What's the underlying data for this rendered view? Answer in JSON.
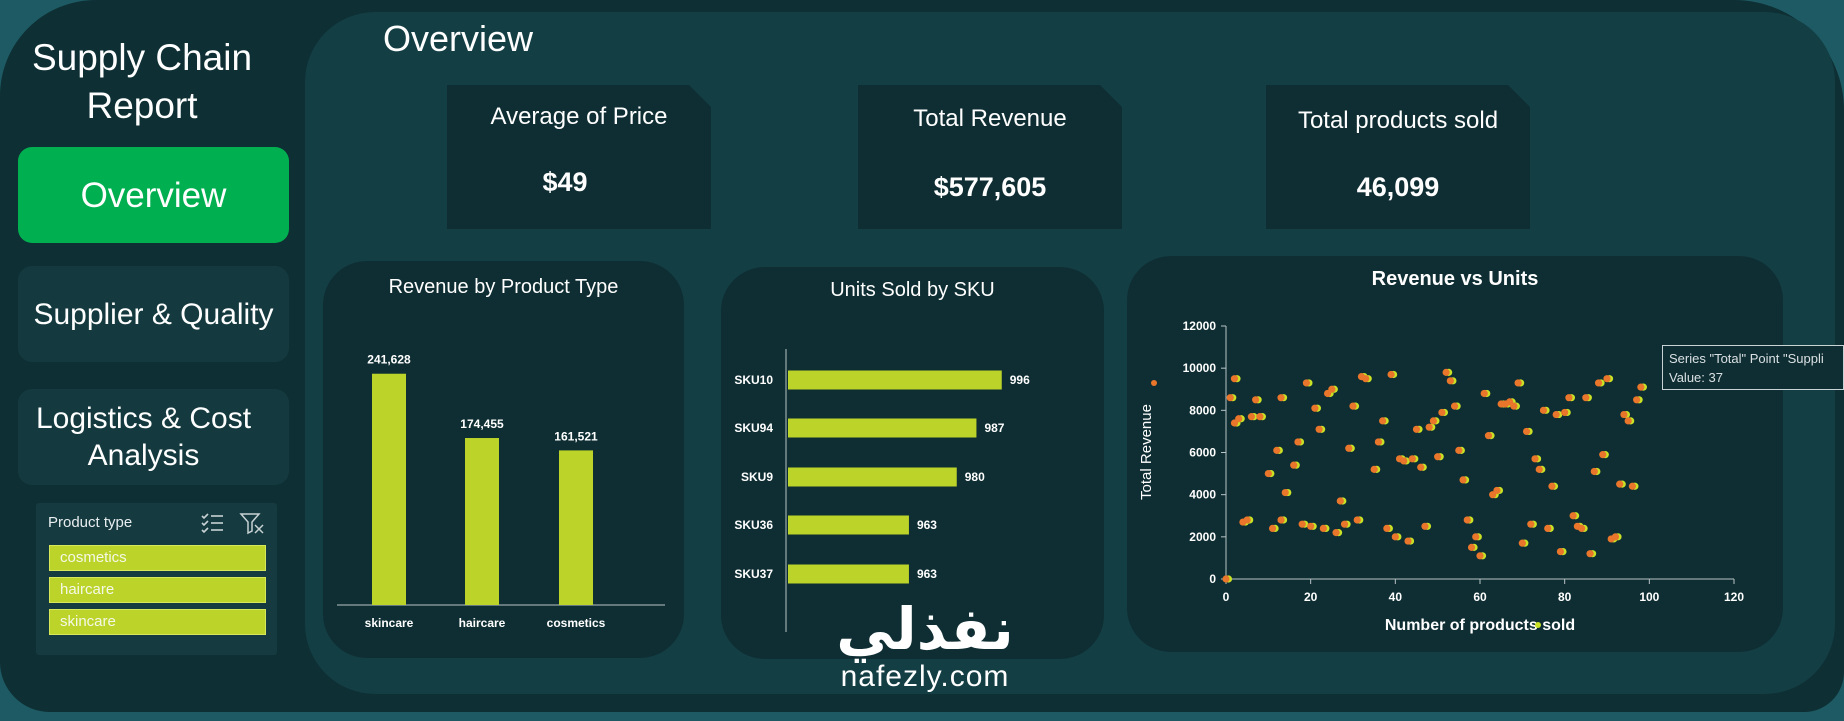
{
  "sidebar": {
    "title": "Supply  Chain\nReport",
    "nav": [
      {
        "label": "Overview"
      },
      {
        "label": "Supplier & Quality"
      },
      {
        "label": "Logistics & Cost\nAnalysis"
      }
    ],
    "slicer": {
      "header": "Product type",
      "items": [
        {
          "label": "cosmetics"
        },
        {
          "label": "haircare"
        },
        {
          "label": "skincare"
        }
      ]
    }
  },
  "main": {
    "title": "Overview",
    "kpis": [
      {
        "label": "Average of Price",
        "value": "$49"
      },
      {
        "label": "Total Revenue",
        "value": "$577,605"
      },
      {
        "label": "Total products sold",
        "value": "46,099"
      }
    ]
  },
  "charts": {
    "revenue_by_type": {
      "title": "Revenue by Product Type",
      "categories": [
        "skincare",
        "haircare",
        "cosmetics"
      ],
      "labels": [
        "241,628",
        "174,455",
        "161,521"
      ]
    },
    "units_by_sku": {
      "title": "Units Sold by SKU",
      "categories": [
        "SKU10",
        "SKU94",
        "SKU9",
        "SKU36",
        "SKU37"
      ],
      "labels": [
        "996",
        "987",
        "980",
        "963",
        "963"
      ]
    },
    "revenue_vs_units": {
      "title": "Revenue vs Units",
      "xlabel": "Number of products sold",
      "ylabel": "Total Revenue",
      "x_ticks": [
        "0",
        "20",
        "40",
        "60",
        "80",
        "100",
        "120"
      ],
      "y_ticks": [
        "0",
        "2000",
        "4000",
        "6000",
        "8000",
        "10000",
        "12000"
      ]
    }
  },
  "tooltip": {
    "line1": "Series \"Total\" Point \"Suppli",
    "line2": "Value:  37"
  },
  "watermark": {
    "arabic": "نفذلي",
    "latin": "nafezly.com"
  },
  "colors": {
    "accent_green": "#00b050",
    "bar_lime": "#bcd42a",
    "point_orange": "#e9762b",
    "point_yellow": "#c9e226",
    "panel_dark": "#0f2e33",
    "background": "#0e2f34"
  },
  "chart_data": [
    {
      "type": "bar",
      "title": "Revenue by Product Type",
      "categories": [
        "skincare",
        "haircare",
        "cosmetics"
      ],
      "values": [
        241628,
        174455,
        161521
      ],
      "ylim": [
        0,
        280000
      ],
      "grid": false,
      "legend": "none"
    },
    {
      "type": "bar",
      "orientation": "horizontal",
      "title": "Units Sold by SKU",
      "categories": [
        "SKU10",
        "SKU94",
        "SKU9",
        "SKU36",
        "SKU37"
      ],
      "values": [
        996,
        987,
        980,
        963,
        963
      ],
      "xlim": [
        920,
        1000
      ],
      "grid": false,
      "legend": "none"
    },
    {
      "type": "scatter",
      "title": "Revenue vs Units",
      "xlabel": "Number of products sold",
      "ylabel": "Total Revenue",
      "xlim": [
        0,
        120
      ],
      "ylim": [
        0,
        12000
      ],
      "grid": false,
      "legend": "none",
      "points": [
        [
          0,
          0
        ],
        [
          1,
          8600
        ],
        [
          2,
          7400
        ],
        [
          2,
          9500
        ],
        [
          3,
          7600
        ],
        [
          4,
          2700
        ],
        [
          5,
          2800
        ],
        [
          6,
          7700
        ],
        [
          7,
          8500
        ],
        [
          8,
          7700
        ],
        [
          10,
          5000
        ],
        [
          11,
          2400
        ],
        [
          12,
          6100
        ],
        [
          13,
          2800
        ],
        [
          13,
          8600
        ],
        [
          14,
          4100
        ],
        [
          16,
          5400
        ],
        [
          17,
          6500
        ],
        [
          18,
          2600
        ],
        [
          19,
          9300
        ],
        [
          20,
          2500
        ],
        [
          21,
          8100
        ],
        [
          22,
          7100
        ],
        [
          23,
          2400
        ],
        [
          24,
          8800
        ],
        [
          25,
          9000
        ],
        [
          26,
          2200
        ],
        [
          27,
          3700
        ],
        [
          28,
          2600
        ],
        [
          29,
          6200
        ],
        [
          30,
          8200
        ],
        [
          31,
          2800
        ],
        [
          32,
          9600
        ],
        [
          33,
          9500
        ],
        [
          35,
          5200
        ],
        [
          36,
          6500
        ],
        [
          37,
          7500
        ],
        [
          38,
          2400
        ],
        [
          39,
          9700
        ],
        [
          40,
          2000
        ],
        [
          41,
          5700
        ],
        [
          42,
          5600
        ],
        [
          43,
          1800
        ],
        [
          44,
          5700
        ],
        [
          45,
          7100
        ],
        [
          46,
          5300
        ],
        [
          47,
          2500
        ],
        [
          48,
          7200
        ],
        [
          49,
          7500
        ],
        [
          50,
          5800
        ],
        [
          51,
          7900
        ],
        [
          52,
          9800
        ],
        [
          53,
          9400
        ],
        [
          54,
          8200
        ],
        [
          55,
          6100
        ],
        [
          56,
          4700
        ],
        [
          57,
          2800
        ],
        [
          58,
          1500
        ],
        [
          59,
          2000
        ],
        [
          60,
          1100
        ],
        [
          61,
          8800
        ],
        [
          62,
          6800
        ],
        [
          63,
          4000
        ],
        [
          64,
          4200
        ],
        [
          65,
          8300
        ],
        [
          66,
          8300
        ],
        [
          67,
          8400
        ],
        [
          68,
          8200
        ],
        [
          69,
          9300
        ],
        [
          70,
          1700
        ],
        [
          71,
          7000
        ],
        [
          72,
          2600
        ],
        [
          73,
          5700
        ],
        [
          74,
          5200
        ],
        [
          75,
          8000
        ],
        [
          76,
          2400
        ],
        [
          77,
          4400
        ],
        [
          78,
          7800
        ],
        [
          79,
          1300
        ],
        [
          80,
          7900
        ],
        [
          81,
          8600
        ],
        [
          82,
          3000
        ],
        [
          83,
          2500
        ],
        [
          84,
          2400
        ],
        [
          85,
          8600
        ],
        [
          86,
          1200
        ],
        [
          87,
          5100
        ],
        [
          88,
          9300
        ],
        [
          89,
          5900
        ],
        [
          90,
          9500
        ],
        [
          91,
          1900
        ],
        [
          92,
          2000
        ],
        [
          93,
          4500
        ],
        [
          94,
          7800
        ],
        [
          95,
          7500
        ],
        [
          96,
          4400
        ],
        [
          97,
          8500
        ],
        [
          98,
          9100
        ]
      ]
    }
  ]
}
